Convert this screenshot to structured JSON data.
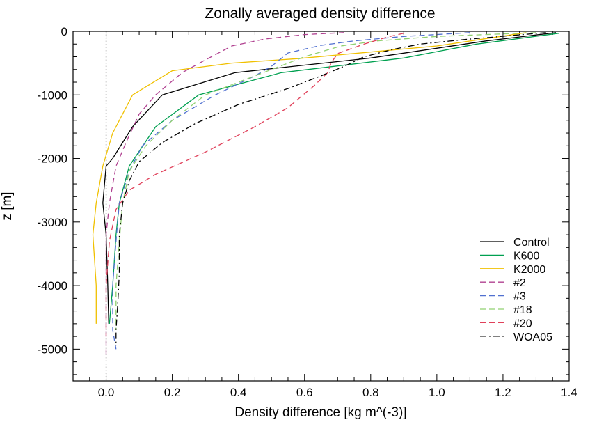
{
  "chart_data": {
    "type": "line",
    "title": "Zonally averaged density difference",
    "xlabel": "Density difference [kg m^(-3)]",
    "ylabel": "z [m]",
    "xlim": [
      -0.1,
      1.4
    ],
    "ylim": [
      -5500,
      0
    ],
    "xticks": [
      "0.0",
      "0.2",
      "0.4",
      "0.6",
      "0.8",
      "1.0",
      "1.2",
      "1.4"
    ],
    "yticks": [
      "0",
      "-1000",
      "-2000",
      "-3000",
      "-4000",
      "-5000"
    ],
    "legend_position": "bottom-right",
    "grid": false,
    "reference_line": {
      "x": 0,
      "style": "dotted"
    },
    "series": [
      {
        "name": "Control",
        "color": "#000000",
        "dash": "solid",
        "points": [
          [
            1.36,
            -20
          ],
          [
            1.15,
            -150
          ],
          [
            0.8,
            -420
          ],
          [
            0.39,
            -650
          ],
          [
            0.17,
            -1000
          ],
          [
            0.08,
            -1500
          ],
          [
            0.02,
            -2000
          ],
          [
            0.0,
            -2120
          ],
          [
            -0.01,
            -2700
          ],
          [
            0.0,
            -3200
          ],
          [
            0.005,
            -4000
          ],
          [
            0.008,
            -4600
          ]
        ]
      },
      {
        "name": "K600",
        "color": "#00a050",
        "dash": "solid",
        "points": [
          [
            1.37,
            -30
          ],
          [
            1.12,
            -200
          ],
          [
            0.9,
            -420
          ],
          [
            0.53,
            -650
          ],
          [
            0.28,
            -1000
          ],
          [
            0.15,
            -1500
          ],
          [
            0.07,
            -2120
          ],
          [
            0.04,
            -2700
          ],
          [
            0.03,
            -3200
          ],
          [
            0.02,
            -4000
          ],
          [
            0.01,
            -4600
          ]
        ]
      },
      {
        "name": "K2000",
        "color": "#f0c000",
        "dash": "solid",
        "points": [
          [
            1.27,
            -20
          ],
          [
            1.0,
            -230
          ],
          [
            0.58,
            -430
          ],
          [
            0.38,
            -500
          ],
          [
            0.2,
            -620
          ],
          [
            0.08,
            -1000
          ],
          [
            0.02,
            -1600
          ],
          [
            -0.01,
            -2120
          ],
          [
            -0.03,
            -2700
          ],
          [
            -0.04,
            -3200
          ],
          [
            -0.03,
            -4000
          ],
          [
            -0.03,
            -4600
          ]
        ]
      },
      {
        "name": "#2",
        "color": "#b04090",
        "dash": "dash",
        "points": [
          [
            0.72,
            -20
          ],
          [
            0.6,
            -50
          ],
          [
            0.48,
            -120
          ],
          [
            0.38,
            -230
          ],
          [
            0.3,
            -450
          ],
          [
            0.23,
            -650
          ],
          [
            0.15,
            -1000
          ],
          [
            0.1,
            -1300
          ],
          [
            0.06,
            -1750
          ],
          [
            0.03,
            -2120
          ],
          [
            0.01,
            -2700
          ],
          [
            0.0,
            -3200
          ],
          [
            0.0,
            -3700
          ],
          [
            0.0,
            -4300
          ],
          [
            0.0,
            -5100
          ]
        ]
      },
      {
        "name": "#3",
        "color": "#5070d0",
        "dash": "dash",
        "points": [
          [
            1.1,
            -20
          ],
          [
            0.9,
            -80
          ],
          [
            0.75,
            -150
          ],
          [
            0.65,
            -220
          ],
          [
            0.55,
            -340
          ],
          [
            0.5,
            -550
          ],
          [
            0.45,
            -700
          ],
          [
            0.33,
            -1000
          ],
          [
            0.2,
            -1400
          ],
          [
            0.11,
            -1800
          ],
          [
            0.07,
            -2200
          ],
          [
            0.04,
            -2700
          ],
          [
            0.03,
            -3300
          ],
          [
            0.02,
            -4000
          ],
          [
            0.02,
            -4700
          ],
          [
            0.03,
            -5000
          ]
        ]
      },
      {
        "name": "#18",
        "color": "#90d070",
        "dash": "dash",
        "points": [
          [
            1.3,
            -20
          ],
          [
            1.0,
            -80
          ],
          [
            0.82,
            -150
          ],
          [
            0.71,
            -230
          ],
          [
            0.6,
            -400
          ],
          [
            0.5,
            -600
          ],
          [
            0.4,
            -800
          ],
          [
            0.3,
            -1000
          ],
          [
            0.2,
            -1400
          ],
          [
            0.12,
            -1800
          ],
          [
            0.07,
            -2200
          ],
          [
            0.05,
            -2700
          ],
          [
            0.04,
            -3300
          ],
          [
            0.03,
            -4000
          ],
          [
            0.03,
            -4700
          ]
        ]
      },
      {
        "name": "#20",
        "color": "#e0405a",
        "dash": "dash",
        "points": [
          [
            0.9,
            -30
          ],
          [
            0.85,
            -90
          ],
          [
            0.78,
            -200
          ],
          [
            0.7,
            -350
          ],
          [
            0.68,
            -500
          ],
          [
            0.67,
            -650
          ],
          [
            0.63,
            -850
          ],
          [
            0.55,
            -1200
          ],
          [
            0.45,
            -1500
          ],
          [
            0.3,
            -1900
          ],
          [
            0.15,
            -2250
          ],
          [
            0.07,
            -2500
          ],
          [
            0.03,
            -2800
          ],
          [
            0.01,
            -3300
          ],
          [
            0.0,
            -4000
          ],
          [
            0.0,
            -4800
          ]
        ]
      },
      {
        "name": "WOA05",
        "color": "#000000",
        "dash": "dashdot",
        "points": [
          [
            1.33,
            -20
          ],
          [
            1.08,
            -130
          ],
          [
            0.95,
            -200
          ],
          [
            0.87,
            -280
          ],
          [
            0.78,
            -400
          ],
          [
            0.72,
            -550
          ],
          [
            0.65,
            -700
          ],
          [
            0.55,
            -900
          ],
          [
            0.4,
            -1150
          ],
          [
            0.27,
            -1450
          ],
          [
            0.17,
            -1750
          ],
          [
            0.1,
            -2050
          ],
          [
            0.07,
            -2350
          ],
          [
            0.05,
            -2700
          ],
          [
            0.04,
            -3200
          ],
          [
            0.04,
            -3800
          ],
          [
            0.035,
            -4300
          ],
          [
            0.03,
            -4700
          ],
          [
            0.03,
            -4950
          ]
        ]
      }
    ]
  }
}
